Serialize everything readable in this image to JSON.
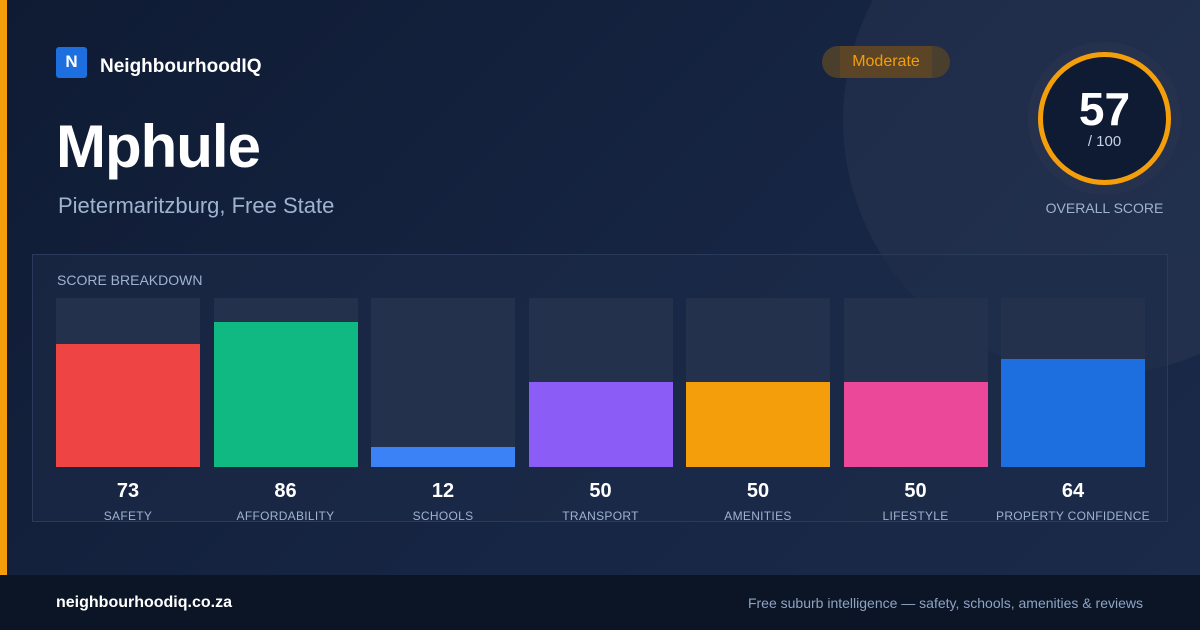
{
  "brand": {
    "logo_letter": "N",
    "name": "NeighbourhoodIQ"
  },
  "suburb": {
    "name": "Mphule",
    "location": "Pietermaritzburg, Free State"
  },
  "rating": {
    "label": "Moderate"
  },
  "overall": {
    "value": "57",
    "max_label": "/ 100",
    "label": "OVERALL SCORE",
    "score": 57,
    "max": 100
  },
  "colors": {
    "accent": "#f59e0b",
    "brand": "#1d6fe0"
  },
  "breakdown": {
    "title": "SCORE BREAKDOWN",
    "items": [
      {
        "label": "SAFETY",
        "value": "73",
        "score": 73,
        "color": "#ef4444"
      },
      {
        "label": "AFFORDABILITY",
        "value": "86",
        "score": 86,
        "color": "#10b981"
      },
      {
        "label": "SCHOOLS",
        "value": "12",
        "score": 12,
        "color": "#3b82f6"
      },
      {
        "label": "TRANSPORT",
        "value": "50",
        "score": 50,
        "color": "#8b5cf6"
      },
      {
        "label": "AMENITIES",
        "value": "50",
        "score": 50,
        "color": "#f59e0b"
      },
      {
        "label": "LIFESTYLE",
        "value": "50",
        "score": 50,
        "color": "#ec4899"
      },
      {
        "label": "PROPERTY CONFIDENCE",
        "value": "64",
        "score": 64,
        "color": "#1d6fe0"
      }
    ]
  },
  "footer": {
    "url": "neighbourhoodiq.co.za",
    "tagline": "Free suburb intelligence — safety, schools, amenities & reviews"
  }
}
